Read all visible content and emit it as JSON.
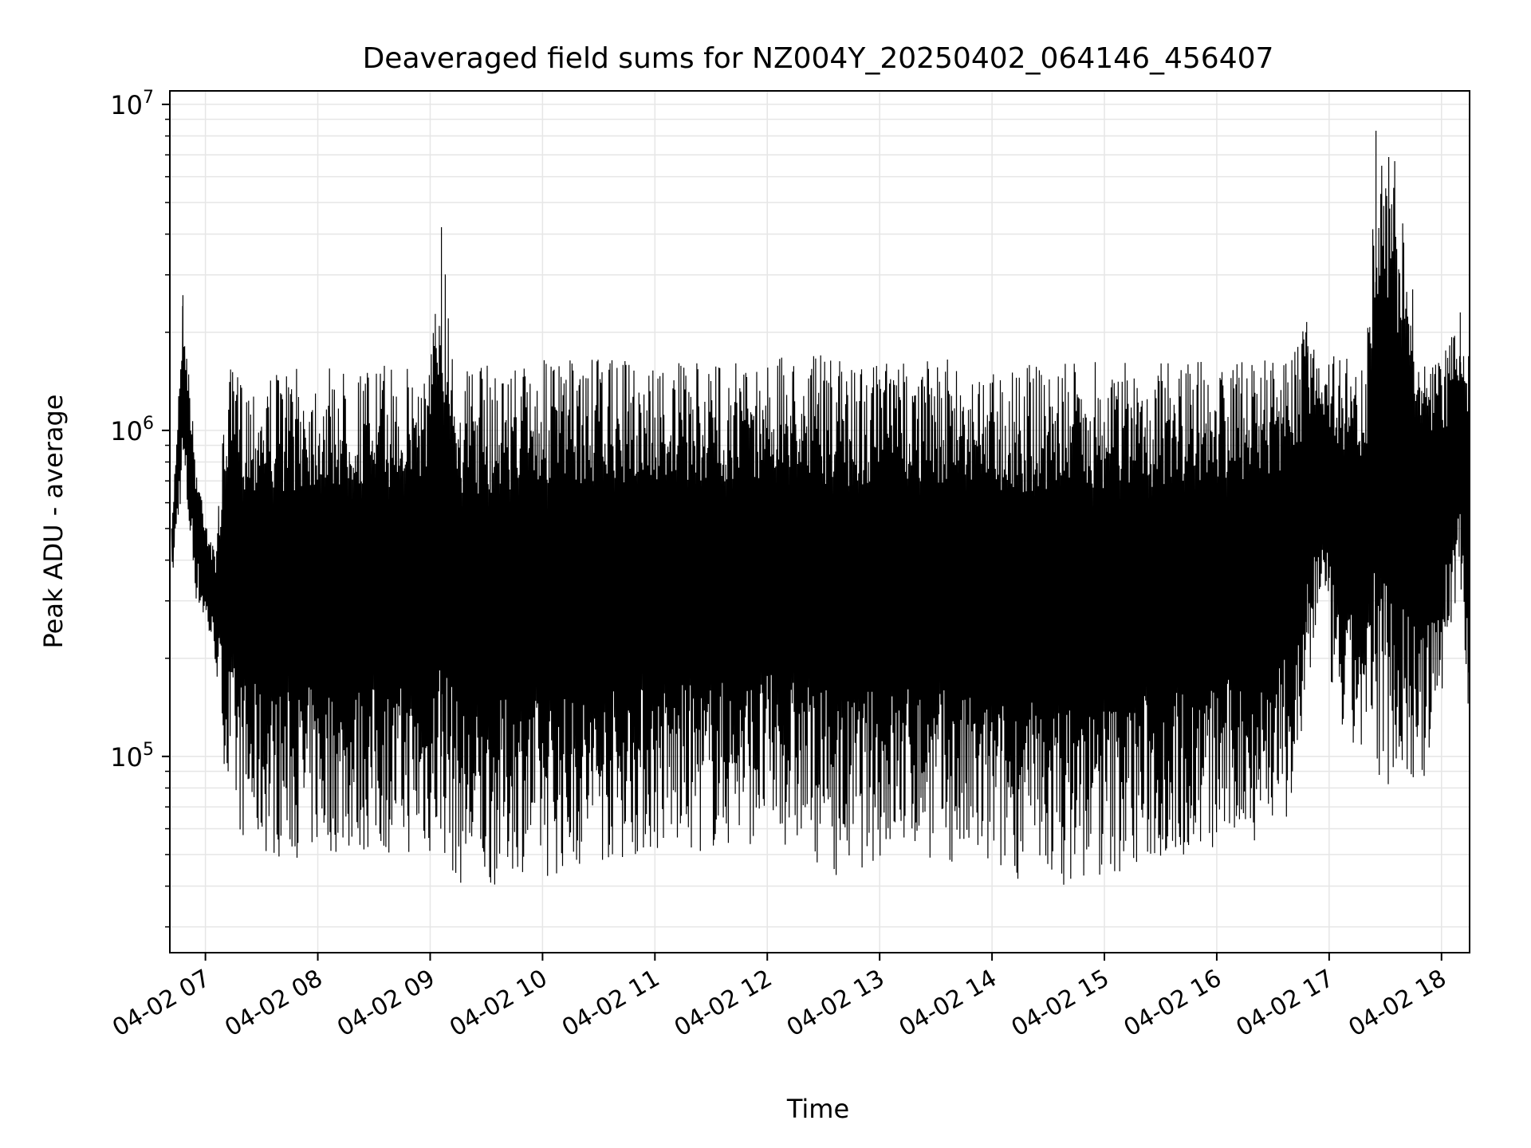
{
  "chart_data": {
    "type": "line",
    "title": "Deaveraged field sums for NZ004Y_20250402_064146_456407",
    "xlabel": "Time",
    "ylabel": "Peak ADU - average",
    "yscale": "log",
    "ylim": [
      25000,
      11000000
    ],
    "xlim": [
      "04-02 06:41",
      "04-02 18:15"
    ],
    "grid": true,
    "x_ticks": [
      "04-02 07",
      "04-02 08",
      "04-02 09",
      "04-02 10",
      "04-02 11",
      "04-02 12",
      "04-02 13",
      "04-02 14",
      "04-02 15",
      "04-02 16",
      "04-02 17",
      "04-02 18"
    ],
    "y_ticks": [
      {
        "base": "10",
        "exp": "5",
        "value": 100000
      },
      {
        "base": "10",
        "exp": "6",
        "value": 1000000
      },
      {
        "base": "10",
        "exp": "7",
        "value": 10000000
      }
    ],
    "colors": {
      "line": "#000000",
      "grid": "#e6e6e6"
    },
    "series": [
      {
        "x": [
          "04-02 06:42",
          "04-02 06:48",
          "04-02 06:55",
          "04-02 07:05",
          "04-02 07:12",
          "04-02 07:20",
          "04-02 07:30",
          "04-02 07:45",
          "04-02 08:00",
          "04-02 08:15",
          "04-02 08:30",
          "04-02 08:45",
          "04-02 09:00",
          "04-02 09:06",
          "04-02 09:15",
          "04-02 09:30",
          "04-02 09:45",
          "04-02 10:00",
          "04-02 10:20",
          "04-02 10:40",
          "04-02 11:00",
          "04-02 11:20",
          "04-02 11:40",
          "04-02 12:00",
          "04-02 12:20",
          "04-02 12:40",
          "04-02 13:00",
          "04-02 13:20",
          "04-02 13:40",
          "04-02 14:00",
          "04-02 14:20",
          "04-02 14:40",
          "04-02 15:00",
          "04-02 15:20",
          "04-02 15:40",
          "04-02 16:00",
          "04-02 16:20",
          "04-02 16:40",
          "04-02 16:48",
          "04-02 16:55",
          "04-02 17:05",
          "04-02 17:20",
          "04-02 17:25",
          "04-02 17:35",
          "04-02 17:50",
          "04-02 18:00",
          "04-02 18:10",
          "04-02 18:15"
        ],
        "y_high": [
          500000,
          2600000,
          800000,
          420000,
          1550000,
          1500000,
          1500000,
          1550000,
          1550000,
          1550000,
          1580000,
          1580000,
          1700000,
          4200000,
          1580000,
          1600000,
          1620000,
          1650000,
          1650000,
          1650000,
          1620000,
          1600000,
          1650000,
          1650000,
          1750000,
          1650000,
          1650000,
          1650000,
          1650000,
          1600000,
          1600000,
          1600000,
          1650000,
          1600000,
          1650000,
          1650000,
          1650000,
          1700000,
          2150000,
          1800000,
          1700000,
          1700000,
          8300000,
          6700000,
          1650000,
          1650000,
          2300000,
          1900000
        ],
        "y_low": [
          330000,
          700000,
          300000,
          200000,
          70000,
          55000,
          50000,
          48000,
          50000,
          50000,
          50000,
          50000,
          48000,
          50000,
          40000,
          38000,
          45000,
          42000,
          45000,
          48000,
          50000,
          50000,
          52000,
          55000,
          50000,
          42000,
          48000,
          50000,
          45000,
          42000,
          42000,
          40000,
          42000,
          45000,
          48000,
          50000,
          55000,
          65000,
          120000,
          300000,
          110000,
          95000,
          85000,
          80000,
          80000,
          150000,
          350000,
          100000
        ]
      }
    ]
  }
}
